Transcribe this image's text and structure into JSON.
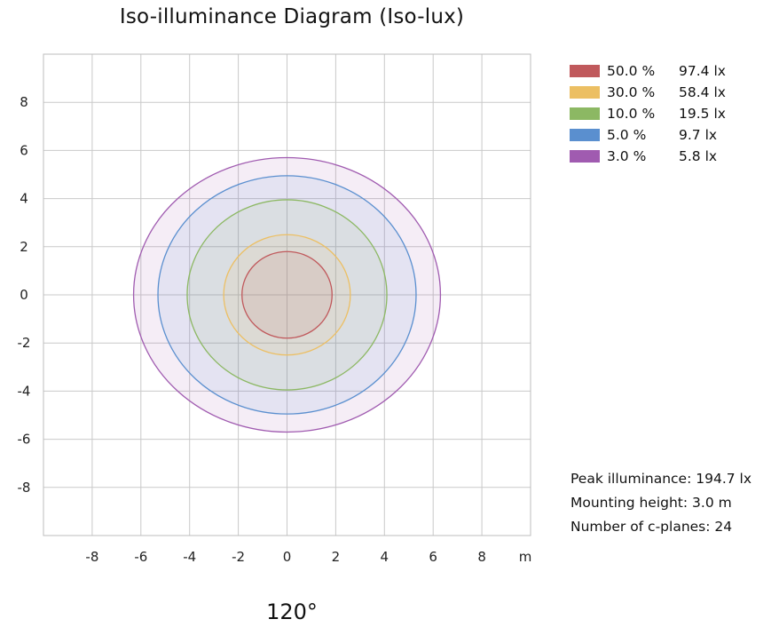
{
  "title": "Iso-illuminance Diagram (Iso-lux)",
  "chart_data": {
    "type": "contour",
    "x_unit_label": "m",
    "xlim": [
      -10,
      10
    ],
    "ylim": [
      -10,
      10
    ],
    "grid": true,
    "x_ticks": [
      "-8",
      "-6",
      "-4",
      "-2",
      "0",
      "2",
      "4",
      "6",
      "8"
    ],
    "y_ticks": [
      "8",
      "6",
      "4",
      "2",
      "0",
      "-2",
      "-4",
      "-6",
      "-8"
    ],
    "contours": [
      {
        "percent": "3.0 %",
        "lux": "5.8 lx",
        "rx": 6.3,
        "ry": 5.7,
        "color": "#a05bb0"
      },
      {
        "percent": "5.0 %",
        "lux": "9.7 lx",
        "rx": 5.3,
        "ry": 4.95,
        "color": "#5a8fcf"
      },
      {
        "percent": "10.0 %",
        "lux": "19.5 lx",
        "rx": 4.1,
        "ry": 3.95,
        "color": "#8cb863"
      },
      {
        "percent": "30.0 %",
        "lux": "58.4 lx",
        "rx": 2.6,
        "ry": 2.5,
        "color": "#ecbf63"
      },
      {
        "percent": "50.0 %",
        "lux": "97.4 lx",
        "rx": 1.85,
        "ry": 1.8,
        "color": "#c0595c"
      }
    ]
  },
  "legend": [
    {
      "percent": "50.0 %",
      "lux": "97.4 lx",
      "color": "#c0595c"
    },
    {
      "percent": "30.0 %",
      "lux": "58.4 lx",
      "color": "#ecbf63"
    },
    {
      "percent": "10.0 %",
      "lux": "19.5 lx",
      "color": "#8cb863"
    },
    {
      "percent": "5.0 %",
      "lux": "9.7 lx",
      "color": "#5a8fcf"
    },
    {
      "percent": "3.0 %",
      "lux": "5.8 lx",
      "color": "#a05bb0"
    }
  ],
  "info": {
    "peak": "Peak illuminance: 194.7 lx",
    "height": "Mounting height: 3.0 m",
    "planes": "Number of c-planes: 24"
  },
  "footer": "120°"
}
